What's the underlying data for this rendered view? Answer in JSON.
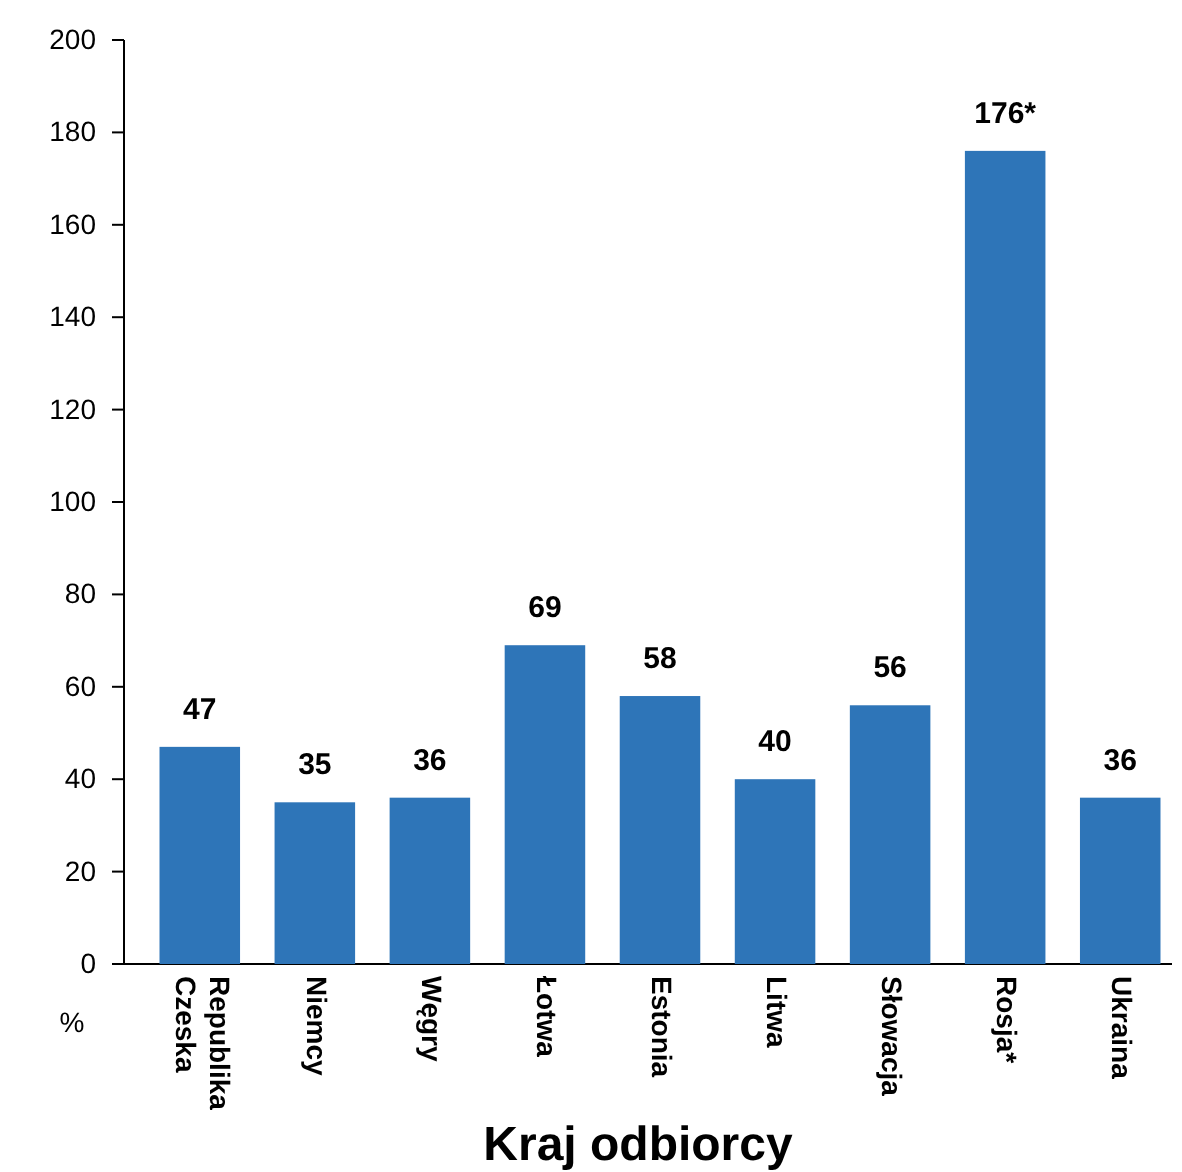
{
  "chart_data": {
    "type": "bar",
    "xlabel": "Kraj odbiorcy",
    "ylabel": "%",
    "categories": [
      "Republika Czeska",
      "Niemcy",
      "Węgry",
      "Łotwa",
      "Estonia",
      "Litwa",
      "Słowacja",
      "Rosja*",
      "Ukraina"
    ],
    "values": [
      47,
      35,
      36,
      69,
      58,
      40,
      56,
      176,
      36
    ],
    "value_labels": [
      "47",
      "35",
      "36",
      "69",
      "58",
      "40",
      "56",
      "176*",
      "36"
    ],
    "color": "#2e75b8",
    "ylim": [
      0,
      200
    ],
    "yticks": [
      0,
      20,
      40,
      60,
      80,
      100,
      120,
      140,
      160,
      180,
      200
    ],
    "grid": false
  }
}
